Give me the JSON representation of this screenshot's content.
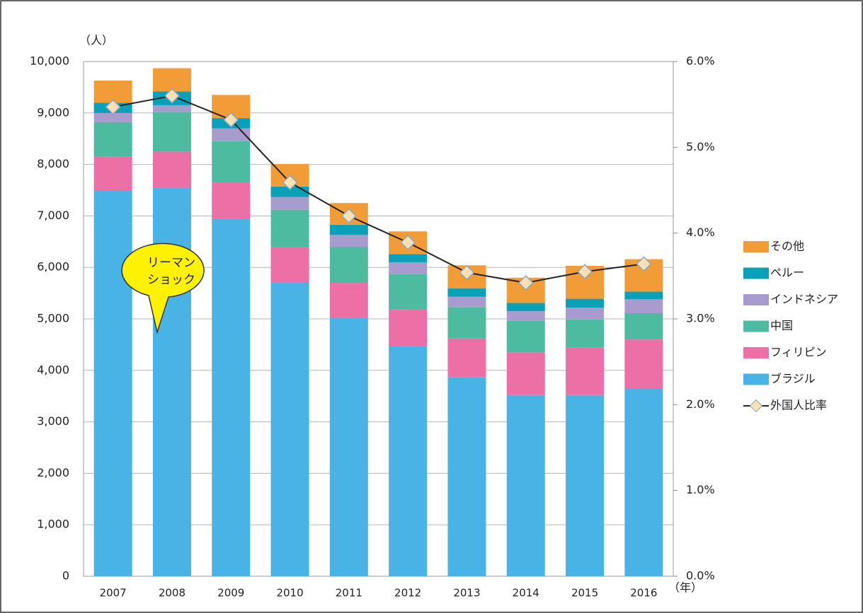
{
  "chart_data": {
    "type": "bar",
    "y_label": "（人）",
    "x_label": "（年）",
    "annotation": [
      "リーマン",
      "ショック"
    ],
    "categories": [
      "2007",
      "2008",
      "2009",
      "2010",
      "2011",
      "2012",
      "2013",
      "2014",
      "2015",
      "2016"
    ],
    "series": [
      {
        "name": "ブラジル",
        "color": "#4ab3e6",
        "values": [
          7500,
          7550,
          6950,
          5700,
          5020,
          4470,
          3870,
          3520,
          3520,
          3640
        ]
      },
      {
        "name": "フィリピン",
        "color": "#ec6fa5",
        "values": [
          650,
          700,
          700,
          700,
          680,
          710,
          750,
          830,
          920,
          960
        ]
      },
      {
        "name": "中国",
        "color": "#4dbba0",
        "values": [
          670,
          770,
          800,
          720,
          700,
          690,
          610,
          610,
          550,
          510
        ]
      },
      {
        "name": "インドネシア",
        "color": "#a89bcd",
        "values": [
          180,
          130,
          250,
          250,
          230,
          230,
          200,
          190,
          230,
          270
        ]
      },
      {
        "name": "ペルー",
        "color": "#0aa0b8",
        "values": [
          200,
          270,
          200,
          200,
          200,
          160,
          160,
          160,
          170,
          150
        ]
      },
      {
        "name": "その他",
        "color": "#f29c38",
        "values": [
          430,
          450,
          450,
          440,
          420,
          440,
          450,
          490,
          640,
          630
        ]
      },
      {
        "name": "外国人比率",
        "color": "#222222",
        "marker_color": "#f7e0b5",
        "axis": "y2",
        "values": [
          5.47,
          5.6,
          5.32,
          4.59,
          4.2,
          3.89,
          3.54,
          3.42,
          3.55,
          3.64
        ]
      }
    ],
    "ylim": [
      0,
      10000
    ],
    "yticks": [
      0,
      {
        "value": 1000,
        "label": "1,000"
      },
      {
        "value": 2000,
        "label": "2,000"
      },
      {
        "value": 3000,
        "label": "3,000"
      },
      {
        "value": 4000,
        "label": "4,000"
      },
      {
        "value": 5000,
        "label": "5,000"
      },
      {
        "value": 6000,
        "label": "6,000"
      },
      {
        "value": 7000,
        "label": "7,000"
      },
      {
        "value": 8000,
        "label": "8,000"
      },
      {
        "value": 9000,
        "label": "9,000"
      },
      {
        "value": 10000,
        "label": "10,000"
      }
    ],
    "y2lim": [
      0,
      6
    ],
    "y2ticks": [
      {
        "value": 0,
        "label": "0.0%"
      },
      {
        "value": 1,
        "label": "1.0%"
      },
      {
        "value": 2,
        "label": "2.0%"
      },
      {
        "value": 3,
        "label": "3.0%"
      },
      {
        "value": 4,
        "label": "4.0%"
      },
      {
        "value": 5,
        "label": "5.0%"
      },
      {
        "value": 6,
        "label": "6.0%"
      }
    ],
    "grid": true
  }
}
